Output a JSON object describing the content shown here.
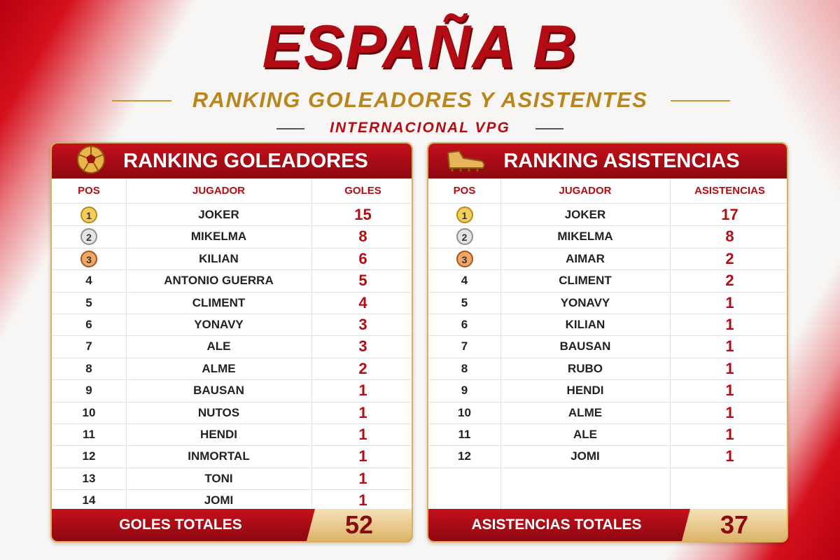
{
  "header": {
    "title": "ESPAÑA B",
    "subtitle": "RANKING GOLEADORES Y ASISTENTES",
    "tagline": "INTERNACIONAL VPG"
  },
  "tables": [
    {
      "title": "RANKING GOLEADORES",
      "columns": [
        "POS",
        "JUGADOR",
        "GOLES"
      ],
      "rows": [
        [
          1,
          "JOKER",
          15
        ],
        [
          2,
          "MIKELMA",
          8
        ],
        [
          3,
          "KILIAN",
          6
        ],
        [
          4,
          "ANTONIO GUERRA",
          5
        ],
        [
          5,
          "CLIMENT",
          4
        ],
        [
          6,
          "YONAVY",
          3
        ],
        [
          7,
          "ALE",
          3
        ],
        [
          8,
          "ALME",
          2
        ],
        [
          9,
          "BAUSAN",
          1
        ],
        [
          10,
          "NUTOS",
          1
        ],
        [
          11,
          "HENDI",
          1
        ],
        [
          12,
          "INMORTAL",
          1
        ],
        [
          13,
          "TONI",
          1
        ],
        [
          14,
          "JOMI",
          1
        ]
      ],
      "total_label": "GOLES TOTALES",
      "total": 52
    },
    {
      "title": "RANKING ASISTENCIAS",
      "columns": [
        "POS",
        "JUGADOR",
        "ASISTENCIAS"
      ],
      "rows": [
        [
          1,
          "JOKER",
          17
        ],
        [
          2,
          "MIKELMA",
          8
        ],
        [
          3,
          "AIMAR",
          2
        ],
        [
          4,
          "CLIMENT",
          2
        ],
        [
          5,
          "YONAVY",
          1
        ],
        [
          6,
          "KILIAN",
          1
        ],
        [
          7,
          "BAUSAN",
          1
        ],
        [
          8,
          "RUBO",
          1
        ],
        [
          9,
          "HENDI",
          1
        ],
        [
          10,
          "ALME",
          1
        ],
        [
          11,
          "ALE",
          1
        ],
        [
          12,
          "JOMI",
          1
        ]
      ],
      "total_label": "ASISTENCIAS TOTALES",
      "total": 37
    }
  ]
}
